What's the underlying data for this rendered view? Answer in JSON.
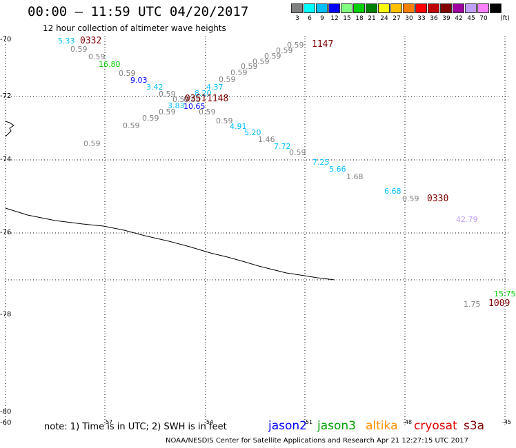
{
  "header": {
    "title": "00:00 – 11:59 UTC 04/20/2017",
    "subtitle": "12 hour collection of altimeter wave heights"
  },
  "legend": {
    "unit": "(ft)",
    "items": [
      {
        "label": "3",
        "color": "#808080"
      },
      {
        "label": "6",
        "color": "#00ffff"
      },
      {
        "label": "9",
        "color": "#00bfff"
      },
      {
        "label": "12",
        "color": "#0000ff"
      },
      {
        "label": "15",
        "color": "#80ff80"
      },
      {
        "label": "18",
        "color": "#00d000"
      },
      {
        "label": "21",
        "color": "#008000"
      },
      {
        "label": "24",
        "color": "#ffff00"
      },
      {
        "label": "27",
        "color": "#ffc000"
      },
      {
        "label": "30",
        "color": "#ff8000"
      },
      {
        "label": "33",
        "color": "#ff0000"
      },
      {
        "label": "36",
        "color": "#c00000"
      },
      {
        "label": "39",
        "color": "#800000"
      },
      {
        "label": "42",
        "color": "#a000a0"
      },
      {
        "label": "45",
        "color": "#c0a0ff"
      },
      {
        "label": "70",
        "color": "#ff80ff"
      },
      {
        "label": "",
        "color": "#000000"
      }
    ]
  },
  "map": {
    "latitudes": [
      {
        "label": "-70",
        "lat": -70
      },
      {
        "label": "-72",
        "lat": -72
      },
      {
        "label": "-74",
        "lat": -74
      },
      {
        "label": "-76",
        "lat": -76
      },
      {
        "label": "-78",
        "lat": -78
      },
      {
        "label": "-80",
        "lat": -80
      }
    ],
    "bottom_left_label": "-60",
    "longitudes": [
      {
        "label": "-57"
      },
      {
        "label": "-54"
      },
      {
        "label": "-51"
      },
      {
        "label": "-48"
      },
      {
        "label": "-45"
      }
    ],
    "observations": [
      {
        "value": "5.33",
        "color": "#00bfff"
      },
      {
        "value": "0.59",
        "color": "#808080"
      },
      {
        "value": "0.59",
        "color": "#808080"
      },
      {
        "value": "16.80",
        "color": "#00d000"
      },
      {
        "value": "0.59",
        "color": "#808080"
      },
      {
        "value": "9.03",
        "color": "#0000ff"
      },
      {
        "value": "3.42",
        "color": "#00bfff"
      },
      {
        "value": "0.59",
        "color": "#808080"
      },
      {
        "value": "0.59",
        "color": "#808080"
      },
      {
        "value": "0.88",
        "color": "#808080"
      },
      {
        "value": "8.20",
        "color": "#00bfff"
      },
      {
        "value": "4.37",
        "color": "#00bfff"
      },
      {
        "value": "3.83",
        "color": "#00bfff"
      },
      {
        "value": "10.65",
        "color": "#0000ff"
      },
      {
        "value": "0.59",
        "color": "#808080"
      },
      {
        "value": "0.59",
        "color": "#808080"
      },
      {
        "value": "0.59",
        "color": "#808080"
      },
      {
        "value": "0.59",
        "color": "#808080"
      },
      {
        "value": "0.59",
        "color": "#808080"
      },
      {
        "value": "0.59",
        "color": "#808080"
      },
      {
        "value": "0.59",
        "color": "#808080"
      },
      {
        "value": "0.59",
        "color": "#808080"
      },
      {
        "value": "0.59",
        "color": "#808080"
      },
      {
        "value": "0.59",
        "color": "#808080"
      },
      {
        "value": "0.59",
        "color": "#808080"
      },
      {
        "value": "0.59",
        "color": "#808080"
      },
      {
        "value": "0.59",
        "color": "#808080"
      },
      {
        "value": "4.91",
        "color": "#00bfff"
      },
      {
        "value": "5.20",
        "color": "#00bfff"
      },
      {
        "value": "1.46",
        "color": "#808080"
      },
      {
        "value": "7.72",
        "color": "#00bfff"
      },
      {
        "value": "0.59",
        "color": "#808080"
      },
      {
        "value": "7.25",
        "color": "#00bfff"
      },
      {
        "value": "5.66",
        "color": "#00bfff"
      },
      {
        "value": "1.68",
        "color": "#808080"
      },
      {
        "value": "6.68",
        "color": "#00bfff"
      },
      {
        "value": "0.59",
        "color": "#808080"
      },
      {
        "value": "42.79",
        "color": "#c0a0ff"
      },
      {
        "value": "15.75",
        "color": "#00d000"
      },
      {
        "value": "1.75",
        "color": "#808080"
      }
    ],
    "times": [
      {
        "value": "0332",
        "color": "#800000"
      },
      {
        "value": "1147",
        "color": "#800000"
      },
      {
        "value": "0351",
        "color": "#800000"
      },
      {
        "value": "1148",
        "color": "#800000"
      },
      {
        "value": "0330",
        "color": "#800000"
      },
      {
        "value": "1009",
        "color": "#800000"
      }
    ]
  },
  "footer": {
    "note": "note: 1) Time is in UTC; 2) SWH is in feet",
    "satellites": [
      {
        "label": "jason2",
        "color": "#0000ff"
      },
      {
        "label": "jason3",
        "color": "#00a000"
      },
      {
        "label": "altika",
        "color": "#ff9000"
      },
      {
        "label": "cryosat",
        "color": "#e00000"
      },
      {
        "label": "s3a",
        "color": "#800000"
      }
    ],
    "credit": "NOAA/NESDIS Center for Satellite Applications and Research    Apr 21 12:27:15 UTC 2017"
  }
}
